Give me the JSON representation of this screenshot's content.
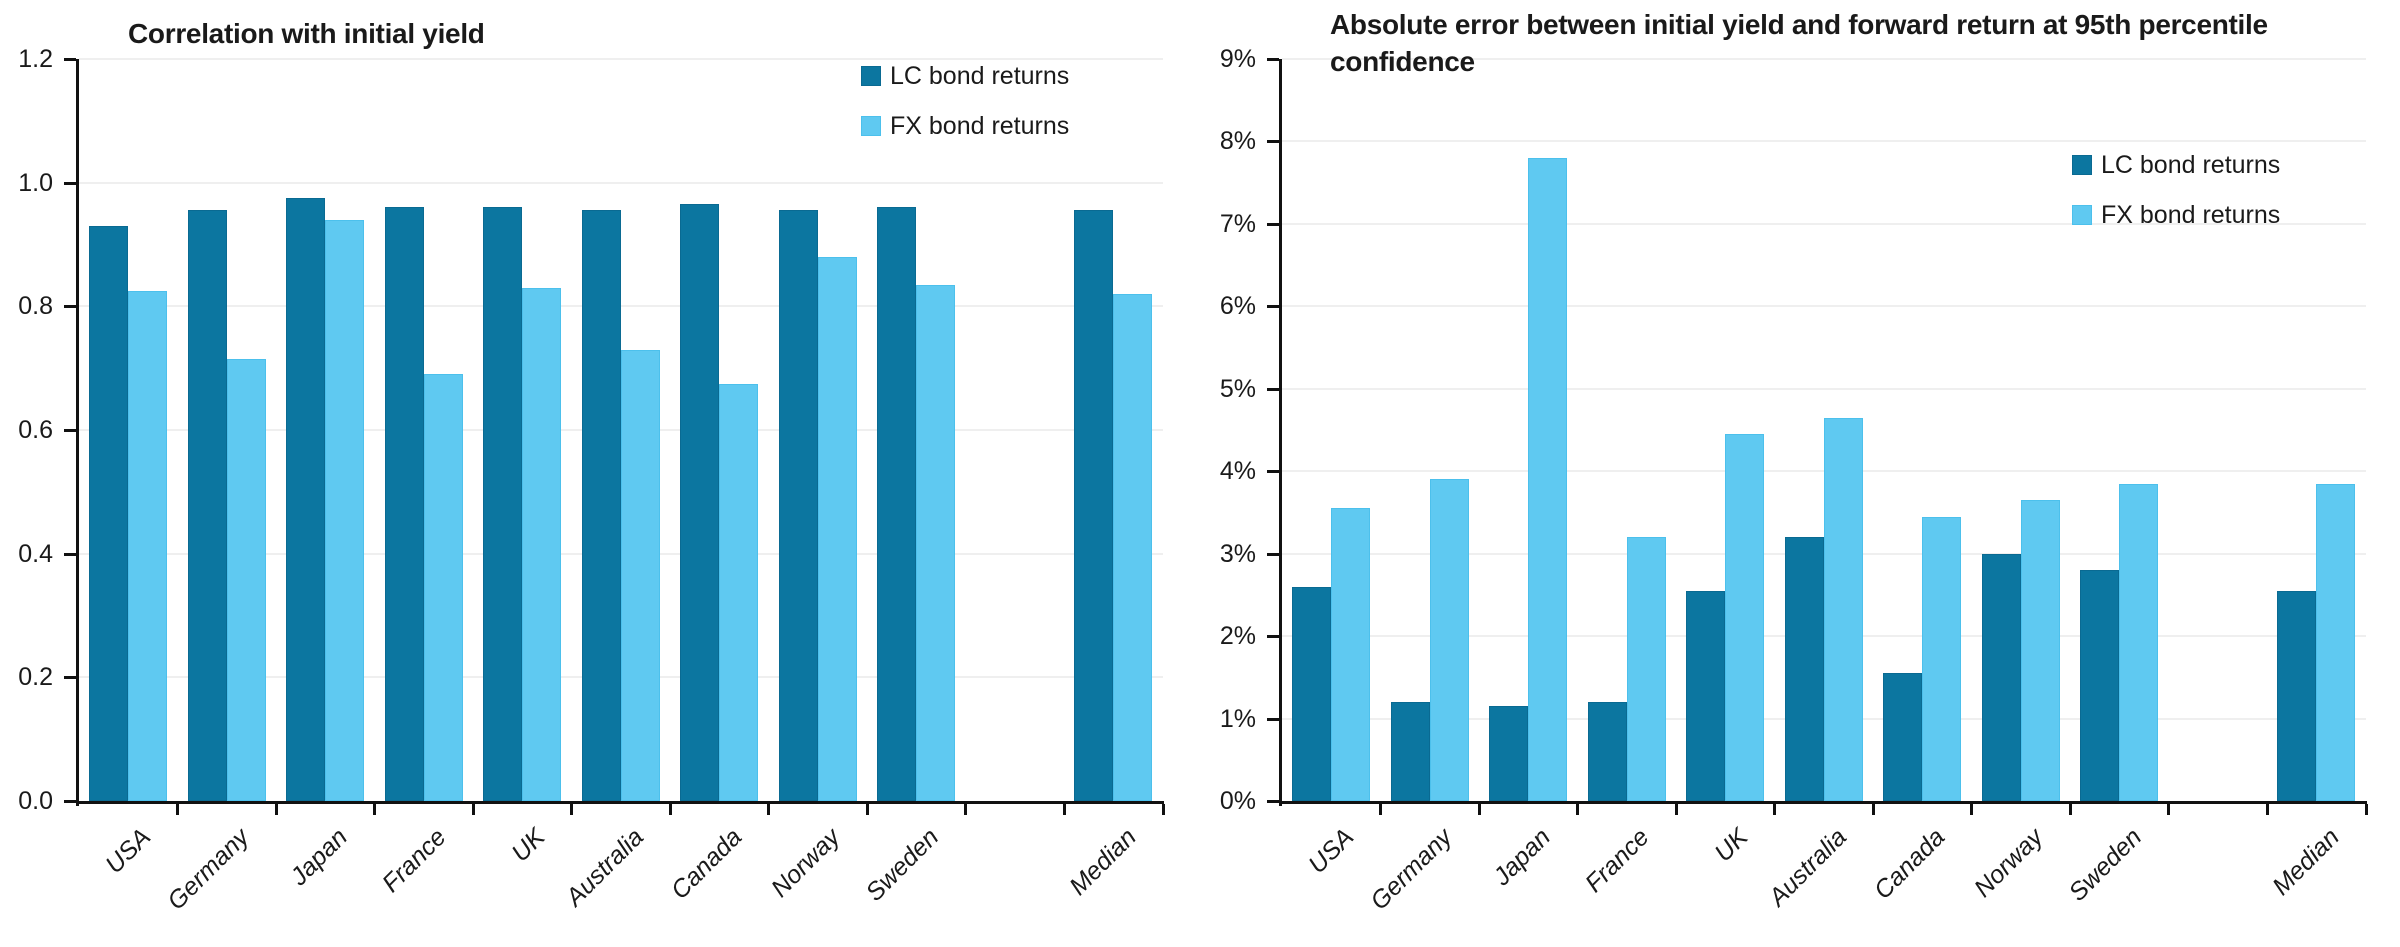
{
  "page": {
    "background": "#ffffff"
  },
  "colors": {
    "lc_bond": "#0c76a0",
    "lc_bond_edge": "#0a6a92",
    "fx_bond": "#5fc9f1",
    "fx_bond_edge": "#4cc0ec",
    "gridline": "#efefef",
    "axis": "#111111",
    "text": "#1a1a1a"
  },
  "chart_data": [
    {
      "type": "bar",
      "title": "Correlation with initial yield",
      "categories": [
        "USA",
        "Germany",
        "Japan",
        "France",
        "UK",
        "Australia",
        "Canada",
        "Norway",
        "Sweden",
        "Median"
      ],
      "gap_before_last_category": true,
      "series": [
        {
          "name": "LC bond returns",
          "color": "#0c76a0",
          "edge_color": "#0a6a92",
          "values": [
            0.93,
            0.955,
            0.975,
            0.96,
            0.96,
            0.955,
            0.965,
            0.955,
            0.96,
            0.955
          ]
        },
        {
          "name": "FX bond returns",
          "color": "#5fc9f1",
          "edge_color": "#4cc0ec",
          "values": [
            0.825,
            0.715,
            0.94,
            0.69,
            0.83,
            0.73,
            0.675,
            0.88,
            0.835,
            0.82
          ]
        }
      ],
      "xlabel": "",
      "ylabel": "",
      "ylim": [
        0,
        1.2
      ],
      "ytick_step": 0.2,
      "ytick_labels": [
        "0.0",
        "0.2",
        "0.4",
        "0.6",
        "0.8",
        "1.0",
        "1.2"
      ],
      "grid": true,
      "legend_position": "upper-right-inside"
    },
    {
      "type": "bar",
      "title": "Absolute error between initial yield and forward return at 95th percentile confidence",
      "categories": [
        "USA",
        "Germany",
        "Japan",
        "France",
        "UK",
        "Australia",
        "Canada",
        "Norway",
        "Sweden",
        "Median"
      ],
      "gap_before_last_category": true,
      "series": [
        {
          "name": "LC bond returns",
          "color": "#0c76a0",
          "edge_color": "#0a6a92",
          "values": [
            2.6,
            1.2,
            1.15,
            1.2,
            2.55,
            3.2,
            1.55,
            3.0,
            2.8,
            2.55
          ]
        },
        {
          "name": "FX bond returns",
          "color": "#5fc9f1",
          "edge_color": "#4cc0ec",
          "values": [
            3.55,
            3.9,
            7.8,
            3.2,
            4.45,
            4.65,
            3.45,
            3.65,
            3.85,
            3.85
          ]
        }
      ],
      "xlabel": "",
      "ylabel": "",
      "ylim": [
        0,
        9
      ],
      "ytick_step": 1,
      "ytick_labels": [
        "0%",
        "1%",
        "2%",
        "3%",
        "4%",
        "5%",
        "6%",
        "7%",
        "8%",
        "9%"
      ],
      "grid": true,
      "legend_position": "upper-right-inside"
    }
  ]
}
